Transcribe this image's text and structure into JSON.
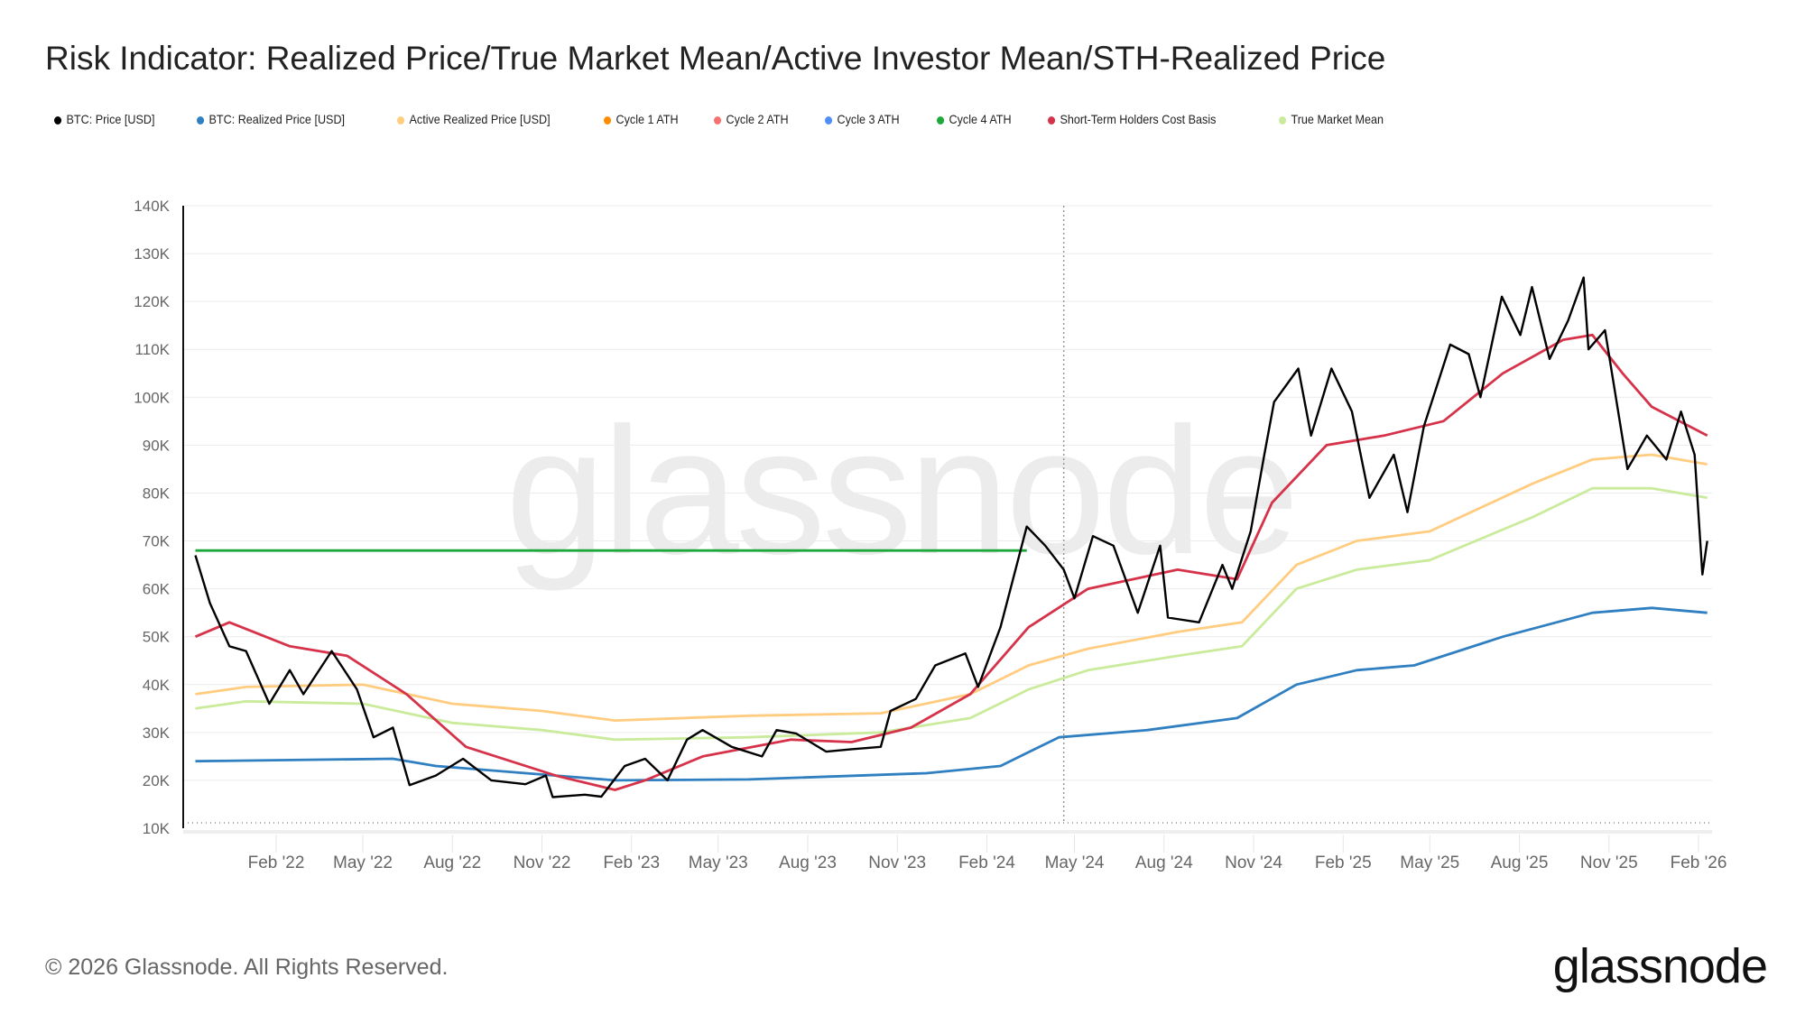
{
  "title": "Risk Indicator: Realized Price/True Market Mean/Active Investor Mean/STH-Realized Price",
  "footer": "© 2026 Glassnode. All Rights Reserved.",
  "logo": "glassnode",
  "watermark": "glassnode",
  "legend": [
    {
      "label": "BTC: Price [USD]",
      "color": "#000000"
    },
    {
      "label": "BTC: Realized Price [USD]",
      "color": "#2f7fc1"
    },
    {
      "label": "Active Realized Price [USD]",
      "color": "#ffcc80"
    },
    {
      "label": "Cycle 1 ATH",
      "color": "#ff8c00"
    },
    {
      "label": "Cycle 2 ATH",
      "color": "#f87171"
    },
    {
      "label": "Cycle 3 ATH",
      "color": "#4f8ef7"
    },
    {
      "label": "Cycle 4 ATH",
      "color": "#1fa83a"
    },
    {
      "label": "Short-Term Holders Cost Basis",
      "color": "#d6334a"
    },
    {
      "label": "True Market Mean",
      "color": "#c9eb9b"
    }
  ],
  "chart_data": {
    "type": "line",
    "title": "Risk Indicator: Realized Price/True Market Mean/Active Investor Mean/STH-Realized Price",
    "ylim": [
      10000,
      140000
    ],
    "y_ticks": [
      "10K",
      "20K",
      "30K",
      "40K",
      "50K",
      "60K",
      "70K",
      "80K",
      "90K",
      "100K",
      "110K",
      "120K",
      "130K",
      "140K"
    ],
    "x_ticks": [
      "Feb '22",
      "May '22",
      "Aug '22",
      "Nov '22",
      "Feb '23",
      "May '23",
      "Aug '23",
      "Nov '23",
      "Feb '24",
      "May '24",
      "Aug '24",
      "Nov '24",
      "Feb '25",
      "May '25",
      "Aug '25",
      "Nov '25",
      "Feb '26"
    ],
    "x_tick_dates": [
      "2022-02-01",
      "2022-05-01",
      "2022-08-01",
      "2022-11-01",
      "2023-02-01",
      "2023-05-01",
      "2023-08-01",
      "2023-11-01",
      "2024-02-01",
      "2024-05-01",
      "2024-08-01",
      "2024-11-01",
      "2025-02-01",
      "2025-05-01",
      "2025-08-01",
      "2025-11-01",
      "2026-02-01"
    ],
    "grid": true,
    "legend_position": "top",
    "vertical_marker_date": "2024-04-20",
    "series": [
      {
        "name": "True Market Mean",
        "color": "#c9eb9b",
        "points": [
          [
            "2021-11-10",
            35000
          ],
          [
            "2022-01-01",
            36500
          ],
          [
            "2022-05-01",
            36000
          ],
          [
            "2022-08-01",
            32000
          ],
          [
            "2022-11-01",
            30500
          ],
          [
            "2023-01-15",
            28500
          ],
          [
            "2023-06-01",
            29000
          ],
          [
            "2023-10-15",
            30000
          ],
          [
            "2024-01-15",
            33000
          ],
          [
            "2024-03-15",
            39000
          ],
          [
            "2024-05-15",
            43000
          ],
          [
            "2024-08-15",
            46000
          ],
          [
            "2024-10-20",
            48000
          ],
          [
            "2024-12-15",
            60000
          ],
          [
            "2025-02-15",
            64000
          ],
          [
            "2025-05-01",
            66000
          ],
          [
            "2025-08-15",
            75000
          ],
          [
            "2025-10-15",
            81000
          ],
          [
            "2025-12-15",
            81000
          ],
          [
            "2026-02-10",
            79000
          ]
        ]
      },
      {
        "name": "Active Realized Price [USD]",
        "color": "#ffcc80",
        "points": [
          [
            "2021-11-10",
            38000
          ],
          [
            "2022-01-01",
            39500
          ],
          [
            "2022-05-01",
            40000
          ],
          [
            "2022-08-01",
            36000
          ],
          [
            "2022-11-01",
            34500
          ],
          [
            "2023-01-15",
            32500
          ],
          [
            "2023-06-01",
            33500
          ],
          [
            "2023-10-15",
            34000
          ],
          [
            "2024-01-15",
            38000
          ],
          [
            "2024-03-15",
            44000
          ],
          [
            "2024-05-15",
            47500
          ],
          [
            "2024-08-15",
            51000
          ],
          [
            "2024-10-20",
            53000
          ],
          [
            "2024-12-15",
            65000
          ],
          [
            "2025-02-15",
            70000
          ],
          [
            "2025-05-01",
            72000
          ],
          [
            "2025-08-15",
            82000
          ],
          [
            "2025-10-15",
            87000
          ],
          [
            "2025-12-15",
            88000
          ],
          [
            "2026-02-10",
            86000
          ]
        ]
      },
      {
        "name": "BTC: Realized Price [USD]",
        "color": "#2f7fc1",
        "points": [
          [
            "2021-11-10",
            24000
          ],
          [
            "2022-06-01",
            24500
          ],
          [
            "2022-07-15",
            23000
          ],
          [
            "2022-11-15",
            21000
          ],
          [
            "2023-01-15",
            20000
          ],
          [
            "2023-06-01",
            20200
          ],
          [
            "2023-12-01",
            21500
          ],
          [
            "2024-02-15",
            23000
          ],
          [
            "2024-04-15",
            29000
          ],
          [
            "2024-07-15",
            30500
          ],
          [
            "2024-10-15",
            33000
          ],
          [
            "2024-12-15",
            40000
          ],
          [
            "2025-02-15",
            43000
          ],
          [
            "2025-04-15",
            44000
          ],
          [
            "2025-07-15",
            50000
          ],
          [
            "2025-10-15",
            55000
          ],
          [
            "2025-12-15",
            56000
          ],
          [
            "2026-02-10",
            55000
          ]
        ]
      },
      {
        "name": "Short-Term Holders Cost Basis",
        "color": "#d6334a",
        "points": [
          [
            "2021-11-10",
            50000
          ],
          [
            "2021-12-15",
            53000
          ],
          [
            "2022-02-15",
            48000
          ],
          [
            "2022-04-15",
            46000
          ],
          [
            "2022-06-15",
            38000
          ],
          [
            "2022-08-15",
            27000
          ],
          [
            "2022-11-15",
            21000
          ],
          [
            "2023-01-15",
            18000
          ],
          [
            "2023-02-15",
            20000
          ],
          [
            "2023-04-15",
            25000
          ],
          [
            "2023-07-15",
            28500
          ],
          [
            "2023-09-15",
            28000
          ],
          [
            "2023-11-15",
            31000
          ],
          [
            "2024-01-15",
            38000
          ],
          [
            "2024-03-15",
            52000
          ],
          [
            "2024-05-15",
            60000
          ],
          [
            "2024-08-15",
            64000
          ],
          [
            "2024-10-15",
            62000
          ],
          [
            "2024-11-20",
            78000
          ],
          [
            "2025-01-15",
            90000
          ],
          [
            "2025-03-15",
            92000
          ],
          [
            "2025-05-15",
            95000
          ],
          [
            "2025-07-15",
            105000
          ],
          [
            "2025-09-15",
            112000
          ],
          [
            "2025-10-15",
            113000
          ],
          [
            "2025-11-15",
            105000
          ],
          [
            "2025-12-15",
            98000
          ],
          [
            "2026-02-10",
            92000
          ]
        ]
      },
      {
        "name": "Cycle 4 ATH",
        "color": "#1fa83a",
        "points": [
          [
            "2021-11-10",
            68000
          ],
          [
            "2024-03-13",
            68000
          ]
        ]
      },
      {
        "name": "BTC: Price [USD]",
        "color": "#000000",
        "points": [
          [
            "2021-11-10",
            67000
          ],
          [
            "2021-11-25",
            57000
          ],
          [
            "2021-12-15",
            48000
          ],
          [
            "2022-01-01",
            47000
          ],
          [
            "2022-01-25",
            36000
          ],
          [
            "2022-02-15",
            43000
          ],
          [
            "2022-03-01",
            38000
          ],
          [
            "2022-03-30",
            47000
          ],
          [
            "2022-04-25",
            39000
          ],
          [
            "2022-05-12",
            29000
          ],
          [
            "2022-06-01",
            31000
          ],
          [
            "2022-06-18",
            19000
          ],
          [
            "2022-07-15",
            21000
          ],
          [
            "2022-08-12",
            24500
          ],
          [
            "2022-09-10",
            20000
          ],
          [
            "2022-10-15",
            19200
          ],
          [
            "2022-11-05",
            21000
          ],
          [
            "2022-11-12",
            16500
          ],
          [
            "2022-12-15",
            17000
          ],
          [
            "2023-01-01",
            16600
          ],
          [
            "2023-01-25",
            23000
          ],
          [
            "2023-02-15",
            24500
          ],
          [
            "2023-03-10",
            20000
          ],
          [
            "2023-03-30",
            28500
          ],
          [
            "2023-04-15",
            30500
          ],
          [
            "2023-05-15",
            27000
          ],
          [
            "2023-06-15",
            25000
          ],
          [
            "2023-06-30",
            30500
          ],
          [
            "2023-07-20",
            29800
          ],
          [
            "2023-08-20",
            26000
          ],
          [
            "2023-09-15",
            26500
          ],
          [
            "2023-10-15",
            27000
          ],
          [
            "2023-10-25",
            34500
          ],
          [
            "2023-11-20",
            37000
          ],
          [
            "2023-12-10",
            44000
          ],
          [
            "2024-01-10",
            46500
          ],
          [
            "2024-01-23",
            39500
          ],
          [
            "2024-02-15",
            52000
          ],
          [
            "2024-03-13",
            73000
          ],
          [
            "2024-04-01",
            69000
          ],
          [
            "2024-04-20",
            64000
          ],
          [
            "2024-05-01",
            58000
          ],
          [
            "2024-05-20",
            71000
          ],
          [
            "2024-06-10",
            69000
          ],
          [
            "2024-07-05",
            55000
          ],
          [
            "2024-07-28",
            69000
          ],
          [
            "2024-08-05",
            54000
          ],
          [
            "2024-09-06",
            53000
          ],
          [
            "2024-09-30",
            65000
          ],
          [
            "2024-10-10",
            60000
          ],
          [
            "2024-10-29",
            72000
          ],
          [
            "2024-11-12",
            88000
          ],
          [
            "2024-11-22",
            99000
          ],
          [
            "2024-12-17",
            106000
          ],
          [
            "2024-12-30",
            92000
          ],
          [
            "2025-01-20",
            106000
          ],
          [
            "2025-02-10",
            97000
          ],
          [
            "2025-02-28",
            79000
          ],
          [
            "2025-03-25",
            88000
          ],
          [
            "2025-04-08",
            76000
          ],
          [
            "2025-04-25",
            94000
          ],
          [
            "2025-05-22",
            111000
          ],
          [
            "2025-06-10",
            109000
          ],
          [
            "2025-06-22",
            100000
          ],
          [
            "2025-07-14",
            121000
          ],
          [
            "2025-08-02",
            113000
          ],
          [
            "2025-08-14",
            123000
          ],
          [
            "2025-09-01",
            108000
          ],
          [
            "2025-09-20",
            116000
          ],
          [
            "2025-10-06",
            125000
          ],
          [
            "2025-10-11",
            110000
          ],
          [
            "2025-10-28",
            114000
          ],
          [
            "2025-11-20",
            85000
          ],
          [
            "2025-12-10",
            92000
          ],
          [
            "2025-12-30",
            87000
          ],
          [
            "2026-01-14",
            97000
          ],
          [
            "2026-01-28",
            88000
          ],
          [
            "2026-02-05",
            63000
          ],
          [
            "2026-02-10",
            70000
          ]
        ]
      }
    ]
  }
}
